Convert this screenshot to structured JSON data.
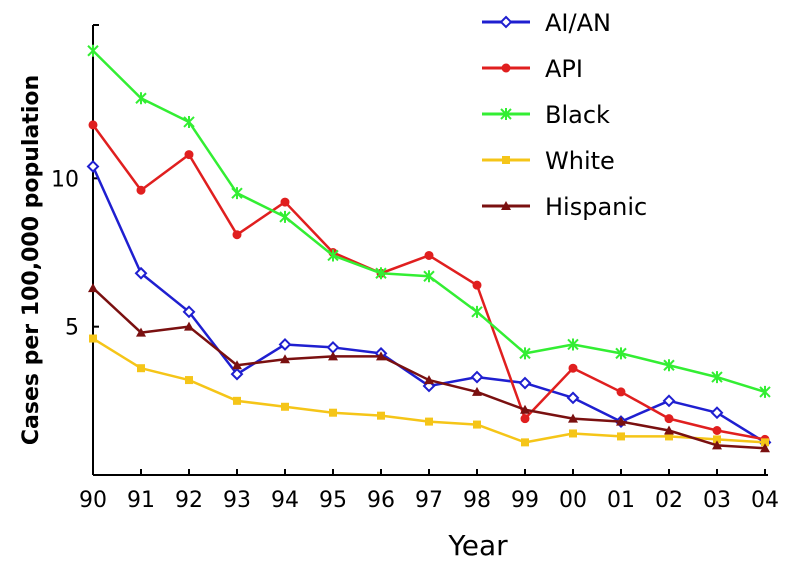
{
  "chart_data": {
    "type": "line",
    "title": "",
    "xlabel": "Year",
    "ylabel": "Cases per 100,000 population",
    "categories": [
      "90",
      "91",
      "92",
      "93",
      "94",
      "95",
      "96",
      "97",
      "98",
      "99",
      "00",
      "01",
      "02",
      "03",
      "04"
    ],
    "yticks": [
      5,
      10
    ],
    "ylim": [
      0,
      15
    ],
    "legend_position": "top-right",
    "series": [
      {
        "name": "AI/AN",
        "color": "#1f1fd0",
        "marker": "diamond",
        "values": [
          10.4,
          6.8,
          5.5,
          3.4,
          4.4,
          4.3,
          4.1,
          3.0,
          3.3,
          3.1,
          2.6,
          1.8,
          2.5,
          2.1,
          1.1
        ]
      },
      {
        "name": "API",
        "color": "#e01f1f",
        "marker": "circle",
        "values": [
          11.8,
          9.6,
          10.8,
          8.1,
          9.2,
          7.5,
          6.8,
          7.4,
          6.4,
          1.9,
          3.6,
          2.8,
          1.9,
          1.5,
          1.2
        ]
      },
      {
        "name": "Black",
        "color": "#33ee33",
        "marker": "star",
        "values": [
          14.3,
          12.7,
          11.9,
          9.5,
          8.7,
          7.4,
          6.8,
          6.7,
          5.5,
          4.1,
          4.4,
          4.1,
          3.7,
          3.3,
          2.8
        ]
      },
      {
        "name": "White",
        "color": "#f5c518",
        "marker": "square",
        "values": [
          4.6,
          3.6,
          3.2,
          2.5,
          2.3,
          2.1,
          2.0,
          1.8,
          1.7,
          1.1,
          1.4,
          1.3,
          1.3,
          1.2,
          1.1
        ]
      },
      {
        "name": "Hispanic",
        "color": "#7a1010",
        "marker": "triangle",
        "values": [
          6.3,
          4.8,
          5.0,
          3.7,
          3.9,
          4.0,
          4.0,
          3.2,
          2.8,
          2.2,
          1.9,
          1.8,
          1.5,
          1.0,
          0.9
        ]
      }
    ]
  }
}
